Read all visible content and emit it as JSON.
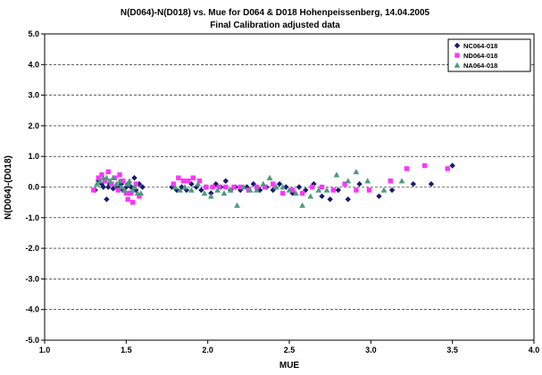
{
  "chart_data": {
    "type": "scatter",
    "title": "N(D064)-N(D018) vs. Mue for D064 & D018 Hohenpeissenberg, 14.04.2005",
    "subtitle": "Final Calibration adjusted data",
    "xlabel": "MUE",
    "ylabel": "N(D064)-(D018)",
    "xlim": [
      1.0,
      4.0
    ],
    "ylim": [
      -5.0,
      5.0
    ],
    "x_ticks": [
      "1.0",
      "1.5",
      "2.0",
      "2.5",
      "3.0",
      "3.5",
      "4.0"
    ],
    "y_ticks": [
      "5.0",
      "4.0",
      "3.0",
      "2.0",
      "1.0",
      "0.0",
      "-1.0",
      "-2.0",
      "-3.0",
      "-4.0",
      "-5.0"
    ],
    "grid": "horizontal dashed",
    "legend_position": "top-right",
    "series": [
      {
        "name": "NC064-018",
        "marker": "diamond",
        "color": "#1a1a6e",
        "points": [
          [
            1.31,
            -0.1
          ],
          [
            1.33,
            0.2
          ],
          [
            1.35,
            0.1
          ],
          [
            1.36,
            0.0
          ],
          [
            1.38,
            -0.4
          ],
          [
            1.39,
            0.0
          ],
          [
            1.4,
            0.1
          ],
          [
            1.42,
            -0.05
          ],
          [
            1.44,
            0.05
          ],
          [
            1.45,
            0.0
          ],
          [
            1.47,
            0.1
          ],
          [
            1.48,
            -0.1
          ],
          [
            1.5,
            0.0
          ],
          [
            1.51,
            0.1
          ],
          [
            1.52,
            -0.2
          ],
          [
            1.53,
            0.0
          ],
          [
            1.55,
            0.3
          ],
          [
            1.56,
            -0.1
          ],
          [
            1.58,
            0.1
          ],
          [
            1.6,
            0.0
          ],
          [
            1.78,
            0.0
          ],
          [
            1.81,
            -0.1
          ],
          [
            1.84,
            0.0
          ],
          [
            1.87,
            -0.1
          ],
          [
            1.9,
            0.1
          ],
          [
            1.93,
            0.0
          ],
          [
            1.96,
            -0.1
          ],
          [
            1.99,
            0.0
          ],
          [
            2.02,
            -0.2
          ],
          [
            2.05,
            0.1
          ],
          [
            2.08,
            0.0
          ],
          [
            2.11,
            0.2
          ],
          [
            2.14,
            -0.1
          ],
          [
            2.17,
            0.0
          ],
          [
            2.2,
            -0.1
          ],
          [
            2.24,
            0.0
          ],
          [
            2.28,
            0.1
          ],
          [
            2.32,
            -0.1
          ],
          [
            2.36,
            0.0
          ],
          [
            2.4,
            -0.1
          ],
          [
            2.44,
            0.1
          ],
          [
            2.48,
            0.0
          ],
          [
            2.52,
            -0.2
          ],
          [
            2.56,
            0.0
          ],
          [
            2.6,
            -0.1
          ],
          [
            2.65,
            0.1
          ],
          [
            2.7,
            -0.3
          ],
          [
            2.75,
            -0.4
          ],
          [
            2.8,
            -0.1
          ],
          [
            2.86,
            -0.4
          ],
          [
            2.93,
            0.1
          ],
          [
            3.05,
            -0.3
          ],
          [
            3.13,
            -0.1
          ],
          [
            3.26,
            0.1
          ],
          [
            3.37,
            0.1
          ],
          [
            3.5,
            0.7
          ]
        ]
      },
      {
        "name": "ND064-018",
        "marker": "square",
        "color": "#ff33ff",
        "points": [
          [
            1.3,
            -0.1
          ],
          [
            1.33,
            0.3
          ],
          [
            1.35,
            0.4
          ],
          [
            1.37,
            0.2
          ],
          [
            1.39,
            0.5
          ],
          [
            1.41,
            0.1
          ],
          [
            1.43,
            0.3
          ],
          [
            1.45,
            -0.1
          ],
          [
            1.46,
            0.4
          ],
          [
            1.48,
            0.2
          ],
          [
            1.5,
            -0.2
          ],
          [
            1.51,
            -0.4
          ],
          [
            1.53,
            -0.2
          ],
          [
            1.54,
            -0.5
          ],
          [
            1.56,
            0.1
          ],
          [
            1.58,
            -0.3
          ],
          [
            1.79,
            0.1
          ],
          [
            1.82,
            0.3
          ],
          [
            1.85,
            0.2
          ],
          [
            1.88,
            0.2
          ],
          [
            1.91,
            0.3
          ],
          [
            1.95,
            0.2
          ],
          [
            1.99,
            0.0
          ],
          [
            2.03,
            0.0
          ],
          [
            2.07,
            0.0
          ],
          [
            2.11,
            0.0
          ],
          [
            2.16,
            0.0
          ],
          [
            2.2,
            0.0
          ],
          [
            2.25,
            -0.1
          ],
          [
            2.3,
            0.0
          ],
          [
            2.35,
            0.0
          ],
          [
            2.4,
            0.1
          ],
          [
            2.46,
            -0.2
          ],
          [
            2.52,
            -0.1
          ],
          [
            2.58,
            -0.2
          ],
          [
            2.64,
            0.0
          ],
          [
            2.7,
            0.0
          ],
          [
            2.77,
            -0.1
          ],
          [
            2.84,
            0.1
          ],
          [
            2.91,
            -0.1
          ],
          [
            2.99,
            -0.1
          ],
          [
            3.12,
            0.2
          ],
          [
            3.22,
            0.6
          ],
          [
            3.33,
            0.7
          ],
          [
            3.47,
            0.6
          ]
        ]
      },
      {
        "name": "NA064-018",
        "marker": "triangle",
        "color": "#4e9a7f",
        "points": [
          [
            1.32,
            0.1
          ],
          [
            1.34,
            0.2
          ],
          [
            1.36,
            0.3
          ],
          [
            1.38,
            0.3
          ],
          [
            1.4,
            0.2
          ],
          [
            1.42,
            0.3
          ],
          [
            1.44,
            0.1
          ],
          [
            1.46,
            0.2
          ],
          [
            1.47,
            0.0
          ],
          [
            1.49,
            -0.1
          ],
          [
            1.51,
            0.1
          ],
          [
            1.52,
            0.2
          ],
          [
            1.54,
            -0.1
          ],
          [
            1.55,
            0.0
          ],
          [
            1.57,
            -0.2
          ],
          [
            1.59,
            -0.2
          ],
          [
            1.8,
            0.0
          ],
          [
            1.83,
            -0.1
          ],
          [
            1.86,
            0.0
          ],
          [
            1.9,
            -0.1
          ],
          [
            1.94,
            0.1
          ],
          [
            1.98,
            -0.2
          ],
          [
            2.02,
            -0.3
          ],
          [
            2.06,
            -0.1
          ],
          [
            2.1,
            -0.2
          ],
          [
            2.14,
            -0.1
          ],
          [
            2.18,
            -0.6
          ],
          [
            2.22,
            0.0
          ],
          [
            2.26,
            -0.1
          ],
          [
            2.3,
            -0.1
          ],
          [
            2.34,
            0.1
          ],
          [
            2.38,
            0.3
          ],
          [
            2.42,
            0.0
          ],
          [
            2.46,
            0.0
          ],
          [
            2.5,
            -0.1
          ],
          [
            2.54,
            -0.2
          ],
          [
            2.58,
            -0.6
          ],
          [
            2.63,
            -0.3
          ],
          [
            2.68,
            -0.1
          ],
          [
            2.73,
            -0.1
          ],
          [
            2.79,
            0.4
          ],
          [
            2.86,
            0.2
          ],
          [
            2.91,
            0.5
          ],
          [
            2.98,
            0.2
          ],
          [
            3.08,
            -0.1
          ],
          [
            3.19,
            0.2
          ]
        ]
      }
    ]
  }
}
